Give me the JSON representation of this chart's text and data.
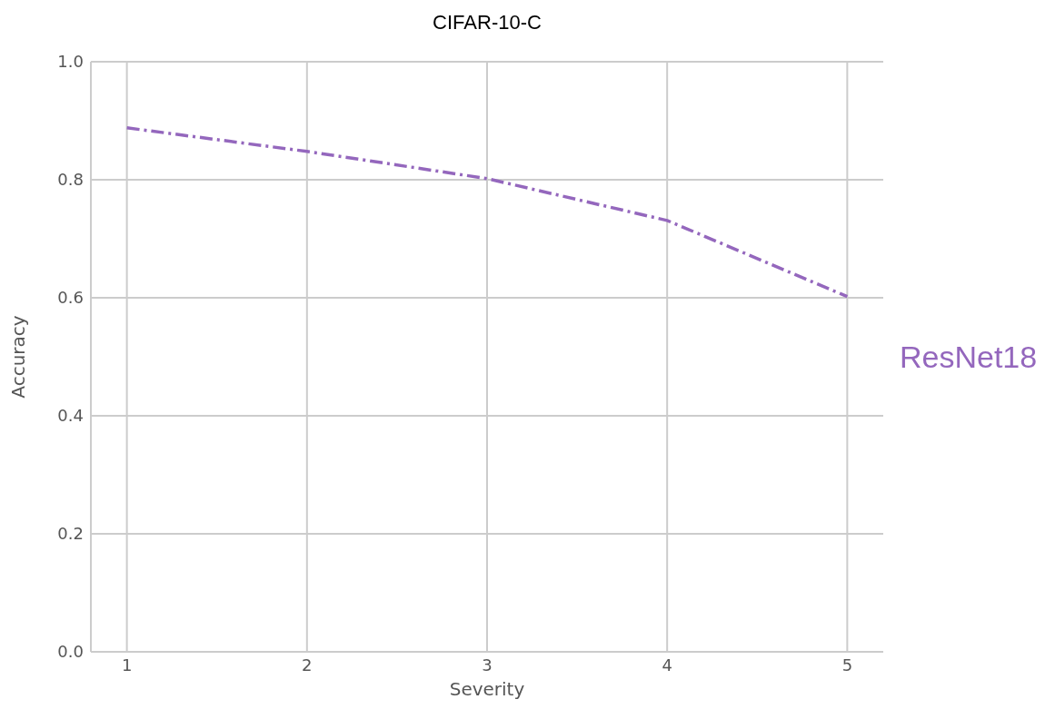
{
  "chart_data": {
    "type": "line",
    "title": "CIFAR-10-C",
    "xlabel": "Severity",
    "ylabel": "Accuracy",
    "x": [
      1,
      2,
      3,
      4,
      5
    ],
    "series": [
      {
        "name": "ResNet18",
        "color": "#9467bd",
        "values": [
          0.888,
          0.848,
          0.802,
          0.731,
          0.602
        ]
      }
    ],
    "xlim": [
      0.8,
      5.2
    ],
    "xticks": [
      1,
      2,
      3,
      4,
      5
    ],
    "ylim": [
      0,
      1
    ],
    "yticks": [
      {
        "value": 0,
        "label": "0.0"
      },
      {
        "value": 0.2,
        "label": "0.2"
      },
      {
        "value": 0.4,
        "label": "0.4"
      },
      {
        "value": 0.6,
        "label": "0.6"
      },
      {
        "value": 0.8,
        "label": "0.8"
      },
      {
        "value": 1,
        "label": "1.0"
      }
    ],
    "grid": true,
    "legend": "right",
    "line_style": "dashed"
  }
}
